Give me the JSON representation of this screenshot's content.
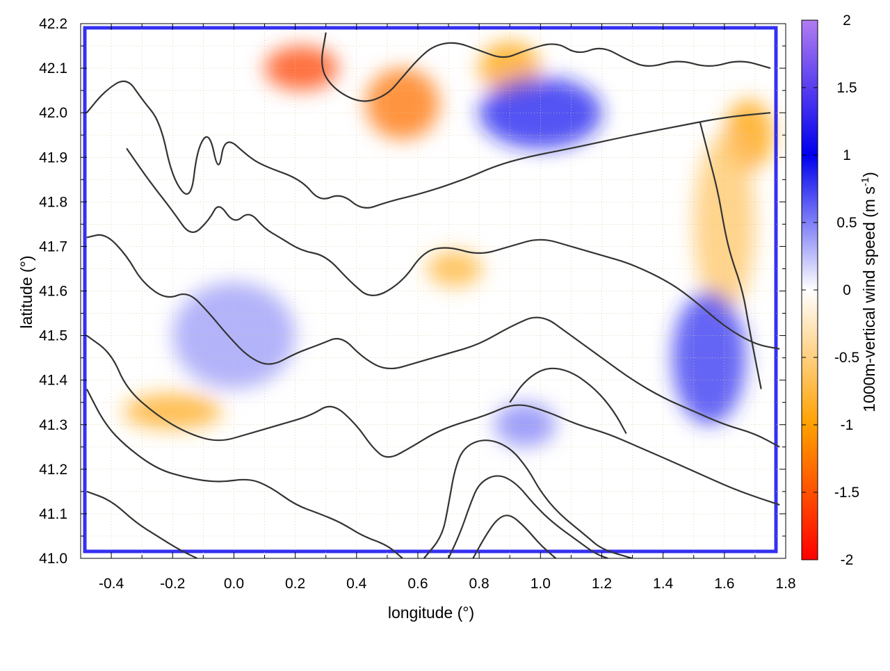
{
  "chart_data": {
    "type": "heatmap",
    "xlabel": "longitude (°)",
    "ylabel": "latitude (°)",
    "colorbar_label": "1000m-vertical wind speed (m s",
    "colorbar_label_sup": "-1",
    "colorbar_label_end": ")",
    "xlim": [
      -0.5,
      1.8
    ],
    "ylim": [
      41.0,
      42.2
    ],
    "xticks": [
      -0.4,
      -0.2,
      0.0,
      0.2,
      0.4,
      0.6,
      0.8,
      1.0,
      1.2,
      1.4,
      1.6,
      1.8
    ],
    "xtick_labels": [
      "-0.4",
      "-0.2",
      "0.0",
      "0.2",
      "0.4",
      "0.6",
      "0.8",
      "1.0",
      "1.2",
      "1.4",
      "1.6",
      "1.8"
    ],
    "yticks": [
      41.0,
      41.1,
      41.2,
      41.3,
      41.4,
      41.5,
      41.6,
      41.7,
      41.8,
      41.9,
      42.0,
      42.1,
      42.2
    ],
    "ytick_labels": [
      "41.0",
      "41.1",
      "41.2",
      "41.3",
      "41.4",
      "41.5",
      "41.6",
      "41.7",
      "41.8",
      "41.9",
      "42.0",
      "42.1",
      "42.2"
    ],
    "colorbar_range": [
      -2,
      2
    ],
    "colorbar_ticks": [
      2,
      1.5,
      1,
      0.5,
      0,
      -0.5,
      -1,
      -1.5,
      -2
    ],
    "colorbar_tick_labels": [
      "2",
      "1.5",
      "1",
      "0.5",
      "0",
      "-0.5",
      "-1",
      "-1.5",
      "-2"
    ],
    "colormap": [
      {
        "v": 2,
        "color": "#b07cf0"
      },
      {
        "v": 1,
        "color": "#0000ee"
      },
      {
        "v": 0,
        "color": "#ffffff"
      },
      {
        "v": -1,
        "color": "#ffa000"
      },
      {
        "v": -2,
        "color": "#ff0000"
      }
    ],
    "grid": true,
    "contour_color": "#333333",
    "features": [
      {
        "lon": 0.22,
        "lat": 42.1,
        "value": -1.6,
        "rx": 0.12,
        "ry": 0.05
      },
      {
        "lon": 0.55,
        "lat": 42.02,
        "value": -1.3,
        "rx": 0.12,
        "ry": 0.08
      },
      {
        "lon": 0.9,
        "lat": 42.1,
        "value": -1.0,
        "rx": 0.1,
        "ry": 0.06
      },
      {
        "lon": 1.68,
        "lat": 41.95,
        "value": -1.0,
        "rx": 0.08,
        "ry": 0.08
      },
      {
        "lon": 0.72,
        "lat": 41.65,
        "value": -0.8,
        "rx": 0.09,
        "ry": 0.04
      },
      {
        "lon": -0.2,
        "lat": 41.33,
        "value": -0.9,
        "rx": 0.16,
        "ry": 0.04
      },
      {
        "lon": 1.6,
        "lat": 41.75,
        "value": -0.6,
        "rx": 0.1,
        "ry": 0.2
      },
      {
        "lon": 0.0,
        "lat": 41.5,
        "value": 0.4,
        "rx": 0.2,
        "ry": 0.12
      },
      {
        "lon": 0.95,
        "lat": 41.3,
        "value": 0.5,
        "rx": 0.1,
        "ry": 0.05
      },
      {
        "lon": 1.55,
        "lat": 41.45,
        "value": 0.8,
        "rx": 0.12,
        "ry": 0.15
      },
      {
        "lon": 1.0,
        "lat": 42.0,
        "value": 0.9,
        "rx": 0.2,
        "ry": 0.08
      }
    ],
    "contours": [
      [
        [
          -0.48,
          42.0
        ],
        [
          -0.42,
          42.05
        ],
        [
          -0.35,
          42.08
        ],
        [
          -0.3,
          42.03
        ],
        [
          -0.24,
          41.98
        ],
        [
          -0.2,
          41.85
        ],
        [
          -0.14,
          41.8
        ],
        [
          -0.12,
          41.92
        ],
        [
          -0.08,
          41.96
        ],
        [
          -0.05,
          41.86
        ],
        [
          -0.03,
          41.95
        ],
        [
          0.05,
          41.9
        ],
        [
          0.1,
          41.88
        ],
        [
          0.22,
          41.85
        ],
        [
          0.28,
          41.8
        ],
        [
          0.35,
          41.82
        ],
        [
          0.42,
          41.78
        ],
        [
          0.5,
          41.8
        ],
        [
          0.62,
          41.82
        ],
        [
          0.75,
          41.85
        ],
        [
          0.85,
          41.88
        ],
        [
          0.95,
          41.9
        ],
        [
          1.1,
          41.92
        ],
        [
          1.3,
          41.95
        ],
        [
          1.45,
          41.97
        ],
        [
          1.6,
          41.99
        ],
        [
          1.75,
          42.0
        ]
      ],
      [
        [
          -0.35,
          41.92
        ],
        [
          -0.28,
          41.85
        ],
        [
          -0.2,
          41.78
        ],
        [
          -0.14,
          41.72
        ],
        [
          -0.08,
          41.76
        ],
        [
          -0.05,
          41.8
        ],
        [
          0.0,
          41.75
        ],
        [
          0.05,
          41.78
        ],
        [
          0.1,
          41.74
        ],
        [
          0.15,
          41.72
        ],
        [
          0.22,
          41.69
        ],
        [
          0.3,
          41.68
        ],
        [
          0.38,
          41.62
        ],
        [
          0.45,
          41.58
        ],
        [
          0.55,
          41.62
        ],
        [
          0.62,
          41.69
        ],
        [
          0.7,
          41.7
        ],
        [
          0.8,
          41.68
        ],
        [
          0.9,
          41.7
        ],
        [
          1.0,
          41.72
        ],
        [
          1.1,
          41.7
        ],
        [
          1.2,
          41.68
        ],
        [
          1.3,
          41.66
        ],
        [
          1.42,
          41.62
        ],
        [
          1.5,
          41.58
        ],
        [
          1.6,
          41.52
        ],
        [
          1.7,
          41.48
        ],
        [
          1.78,
          41.47
        ]
      ],
      [
        [
          -0.48,
          41.72
        ],
        [
          -0.42,
          41.73
        ],
        [
          -0.35,
          41.68
        ],
        [
          -0.3,
          41.62
        ],
        [
          -0.22,
          41.58
        ],
        [
          -0.15,
          41.6
        ],
        [
          -0.08,
          41.55
        ],
        [
          -0.02,
          41.5
        ],
        [
          0.05,
          41.45
        ],
        [
          0.12,
          41.43
        ],
        [
          0.2,
          41.46
        ],
        [
          0.28,
          41.48
        ],
        [
          0.35,
          41.5
        ],
        [
          0.42,
          41.45
        ],
        [
          0.5,
          41.42
        ],
        [
          0.6,
          41.44
        ],
        [
          0.7,
          41.46
        ],
        [
          0.8,
          41.48
        ],
        [
          0.9,
          41.52
        ],
        [
          1.0,
          41.55
        ],
        [
          1.1,
          41.5
        ],
        [
          1.2,
          41.45
        ],
        [
          1.3,
          41.4
        ],
        [
          1.4,
          41.36
        ],
        [
          1.5,
          41.33
        ],
        [
          1.6,
          41.3
        ],
        [
          1.7,
          41.28
        ],
        [
          1.78,
          41.25
        ]
      ],
      [
        [
          -0.48,
          41.5
        ],
        [
          -0.4,
          41.46
        ],
        [
          -0.35,
          41.38
        ],
        [
          -0.25,
          41.32
        ],
        [
          -0.15,
          41.28
        ],
        [
          -0.05,
          41.26
        ],
        [
          0.05,
          41.28
        ],
        [
          0.15,
          41.3
        ],
        [
          0.25,
          41.32
        ],
        [
          0.32,
          41.35
        ],
        [
          0.4,
          41.3
        ],
        [
          0.45,
          41.25
        ],
        [
          0.5,
          41.22
        ],
        [
          0.58,
          41.25
        ],
        [
          0.65,
          41.28
        ],
        [
          0.72,
          41.3
        ],
        [
          0.82,
          41.32
        ],
        [
          0.92,
          41.35
        ],
        [
          1.02,
          41.33
        ],
        [
          1.12,
          41.3
        ],
        [
          1.22,
          41.28
        ],
        [
          1.32,
          41.25
        ],
        [
          1.42,
          41.22
        ],
        [
          1.55,
          41.18
        ],
        [
          1.65,
          41.15
        ],
        [
          1.78,
          41.12
        ]
      ],
      [
        [
          -0.48,
          41.38
        ],
        [
          -0.42,
          41.3
        ],
        [
          -0.35,
          41.25
        ],
        [
          -0.25,
          41.2
        ],
        [
          -0.15,
          41.18
        ],
        [
          -0.05,
          41.17
        ],
        [
          0.05,
          41.18
        ],
        [
          0.12,
          41.16
        ],
        [
          0.2,
          41.12
        ],
        [
          0.28,
          41.1
        ],
        [
          0.35,
          41.08
        ],
        [
          0.42,
          41.05
        ],
        [
          0.5,
          41.03
        ],
        [
          0.55,
          41.0
        ]
      ],
      [
        [
          -0.48,
          41.15
        ],
        [
          -0.4,
          41.13
        ],
        [
          -0.32,
          41.08
        ],
        [
          -0.25,
          41.05
        ],
        [
          -0.18,
          41.02
        ],
        [
          -0.12,
          41.0
        ]
      ],
      [
        [
          0.62,
          41.0
        ],
        [
          0.68,
          41.05
        ],
        [
          0.7,
          41.12
        ],
        [
          0.72,
          41.2
        ],
        [
          0.75,
          41.25
        ],
        [
          0.82,
          41.27
        ],
        [
          0.9,
          41.25
        ],
        [
          0.96,
          41.2
        ],
        [
          1.0,
          41.15
        ],
        [
          1.06,
          41.1
        ],
        [
          1.15,
          41.05
        ],
        [
          1.2,
          41.02
        ],
        [
          1.3,
          41.0
        ]
      ],
      [
        [
          0.7,
          41.0
        ],
        [
          0.74,
          41.06
        ],
        [
          0.77,
          41.12
        ],
        [
          0.8,
          41.17
        ],
        [
          0.86,
          41.19
        ],
        [
          0.92,
          41.17
        ],
        [
          0.98,
          41.12
        ],
        [
          1.04,
          41.08
        ],
        [
          1.12,
          41.04
        ],
        [
          1.18,
          41.01
        ],
        [
          1.22,
          41.0
        ]
      ],
      [
        [
          0.78,
          41.0
        ],
        [
          0.82,
          41.05
        ],
        [
          0.86,
          41.09
        ],
        [
          0.9,
          41.1
        ],
        [
          0.95,
          41.07
        ],
        [
          1.0,
          41.03
        ],
        [
          1.05,
          41.0
        ]
      ],
      [
        [
          0.3,
          42.18
        ],
        [
          0.28,
          42.1
        ],
        [
          0.33,
          42.05
        ],
        [
          0.42,
          42.02
        ],
        [
          0.5,
          42.04
        ],
        [
          0.55,
          42.08
        ],
        [
          0.6,
          42.12
        ],
        [
          0.65,
          42.15
        ],
        [
          0.72,
          42.16
        ],
        [
          0.8,
          42.14
        ],
        [
          0.88,
          42.12
        ],
        [
          0.95,
          42.14
        ],
        [
          1.05,
          42.16
        ],
        [
          1.12,
          42.13
        ],
        [
          1.2,
          42.15
        ],
        [
          1.28,
          42.12
        ],
        [
          1.35,
          42.1
        ],
        [
          1.45,
          42.12
        ],
        [
          1.55,
          42.1
        ],
        [
          1.65,
          42.12
        ],
        [
          1.75,
          42.1
        ]
      ],
      [
        [
          1.52,
          41.98
        ],
        [
          1.55,
          41.9
        ],
        [
          1.58,
          41.82
        ],
        [
          1.6,
          41.74
        ],
        [
          1.62,
          41.68
        ],
        [
          1.66,
          41.6
        ],
        [
          1.68,
          41.52
        ],
        [
          1.7,
          41.45
        ],
        [
          1.72,
          41.38
        ]
      ],
      [
        [
          0.9,
          41.35
        ],
        [
          0.95,
          41.4
        ],
        [
          1.02,
          41.43
        ],
        [
          1.1,
          41.42
        ],
        [
          1.18,
          41.38
        ],
        [
          1.24,
          41.33
        ],
        [
          1.28,
          41.28
        ]
      ]
    ]
  }
}
